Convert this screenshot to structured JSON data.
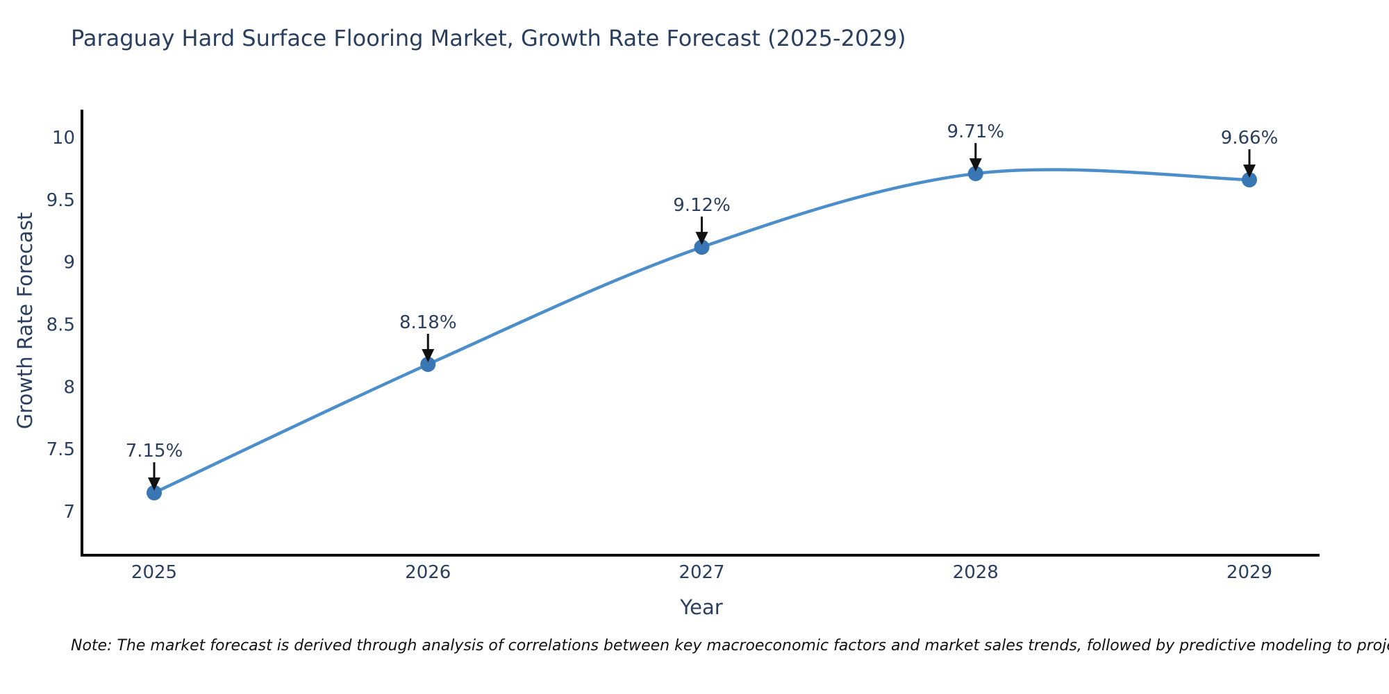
{
  "chart_data": {
    "type": "line",
    "title": "Paraguay Hard Surface Flooring Market, Growth Rate Forecast (2025-2029)",
    "x": [
      "2025",
      "2026",
      "2027",
      "2028",
      "2029"
    ],
    "series": [
      {
        "name": "Growth Rate Forecast",
        "values": [
          7.15,
          8.18,
          9.12,
          9.71,
          9.66
        ]
      }
    ],
    "point_labels": [
      "7.15%",
      "8.18%",
      "9.12%",
      "9.71%",
      "9.66%"
    ],
    "xlabel": "Year",
    "ylabel": "Growth Rate Forecast",
    "y_ticks": [
      7,
      7.5,
      8,
      8.5,
      9,
      9.5,
      10
    ],
    "ylim": [
      6.65,
      10.25
    ],
    "line_shape": "spline",
    "grid": false,
    "legend": "none",
    "colors": {
      "line": "#4b8ec9",
      "marker": "#3877b4",
      "arrow": "#111111",
      "text": "#2a3f5f",
      "axis": "#000000",
      "background": "#ffffff"
    }
  },
  "footnote": {
    "text": "Note: The market forecast is derived through analysis of correlations between key macroeconomic factors and market sales trends, followed by predictive modeling to project future sales"
  }
}
